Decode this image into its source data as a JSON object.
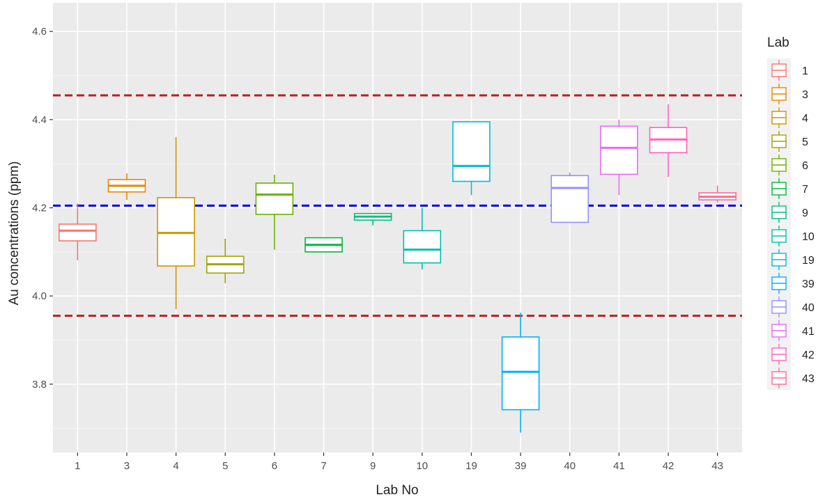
{
  "chart_data": {
    "type": "boxplot",
    "xlabel": "Lab No",
    "ylabel": "Au concentrations (ppm)",
    "ylim": [
      3.645,
      4.665
    ],
    "y_ticks": [
      "3.8",
      "4.0",
      "4.2",
      "4.4",
      "4.6"
    ],
    "legend": {
      "title": "Lab",
      "position": "right"
    },
    "reference_lines": [
      {
        "value": 4.455,
        "color": "#b22222",
        "style": "dashed"
      },
      {
        "value": 4.205,
        "color": "#0000ee",
        "style": "dashed"
      },
      {
        "value": 3.955,
        "color": "#b22222",
        "style": "dashed"
      }
    ],
    "categories": [
      "1",
      "3",
      "4",
      "5",
      "6",
      "7",
      "9",
      "10",
      "19",
      "39",
      "40",
      "41",
      "42",
      "43"
    ],
    "colors": [
      "#F8766D",
      "#E58700",
      "#C99800",
      "#A3A500",
      "#6BB100",
      "#00BA38",
      "#00BF7D",
      "#00C0AF",
      "#00BCD8",
      "#00B0F6",
      "#9590FF",
      "#E76BF3",
      "#FF62BC",
      "#FF6C91"
    ],
    "boxes": [
      {
        "min": 4.081,
        "q1": 4.125,
        "median": 4.148,
        "q3": 4.163,
        "max": 4.21
      },
      {
        "min": 4.218,
        "q1": 4.236,
        "median": 4.25,
        "q3": 4.264,
        "max": 4.278
      },
      {
        "min": 3.97,
        "q1": 4.068,
        "median": 4.143,
        "q3": 4.223,
        "max": 4.36
      },
      {
        "min": 4.029,
        "q1": 4.052,
        "median": 4.072,
        "q3": 4.09,
        "max": 4.13
      },
      {
        "min": 4.105,
        "q1": 4.185,
        "median": 4.23,
        "q3": 4.256,
        "max": 4.275
      },
      {
        "min": 4.1,
        "q1": 4.1,
        "median": 4.116,
        "q3": 4.132,
        "max": 4.132
      },
      {
        "min": 4.16,
        "q1": 4.172,
        "median": 4.18,
        "q3": 4.187,
        "max": 4.187
      },
      {
        "min": 4.06,
        "q1": 4.075,
        "median": 4.105,
        "q3": 4.148,
        "max": 4.2
      },
      {
        "min": 4.229,
        "q1": 4.26,
        "median": 4.295,
        "q3": 4.395,
        "max": 4.395
      },
      {
        "min": 3.69,
        "q1": 3.742,
        "median": 3.828,
        "q3": 3.907,
        "max": 3.962
      },
      {
        "min": 4.167,
        "q1": 4.167,
        "median": 4.245,
        "q3": 4.273,
        "max": 4.28
      },
      {
        "min": 4.229,
        "q1": 4.276,
        "median": 4.336,
        "q3": 4.385,
        "max": 4.4
      },
      {
        "min": 4.27,
        "q1": 4.325,
        "median": 4.355,
        "q3": 4.382,
        "max": 4.435
      },
      {
        "min": 4.212,
        "q1": 4.218,
        "median": 4.225,
        "q3": 4.234,
        "max": 4.25
      }
    ]
  }
}
